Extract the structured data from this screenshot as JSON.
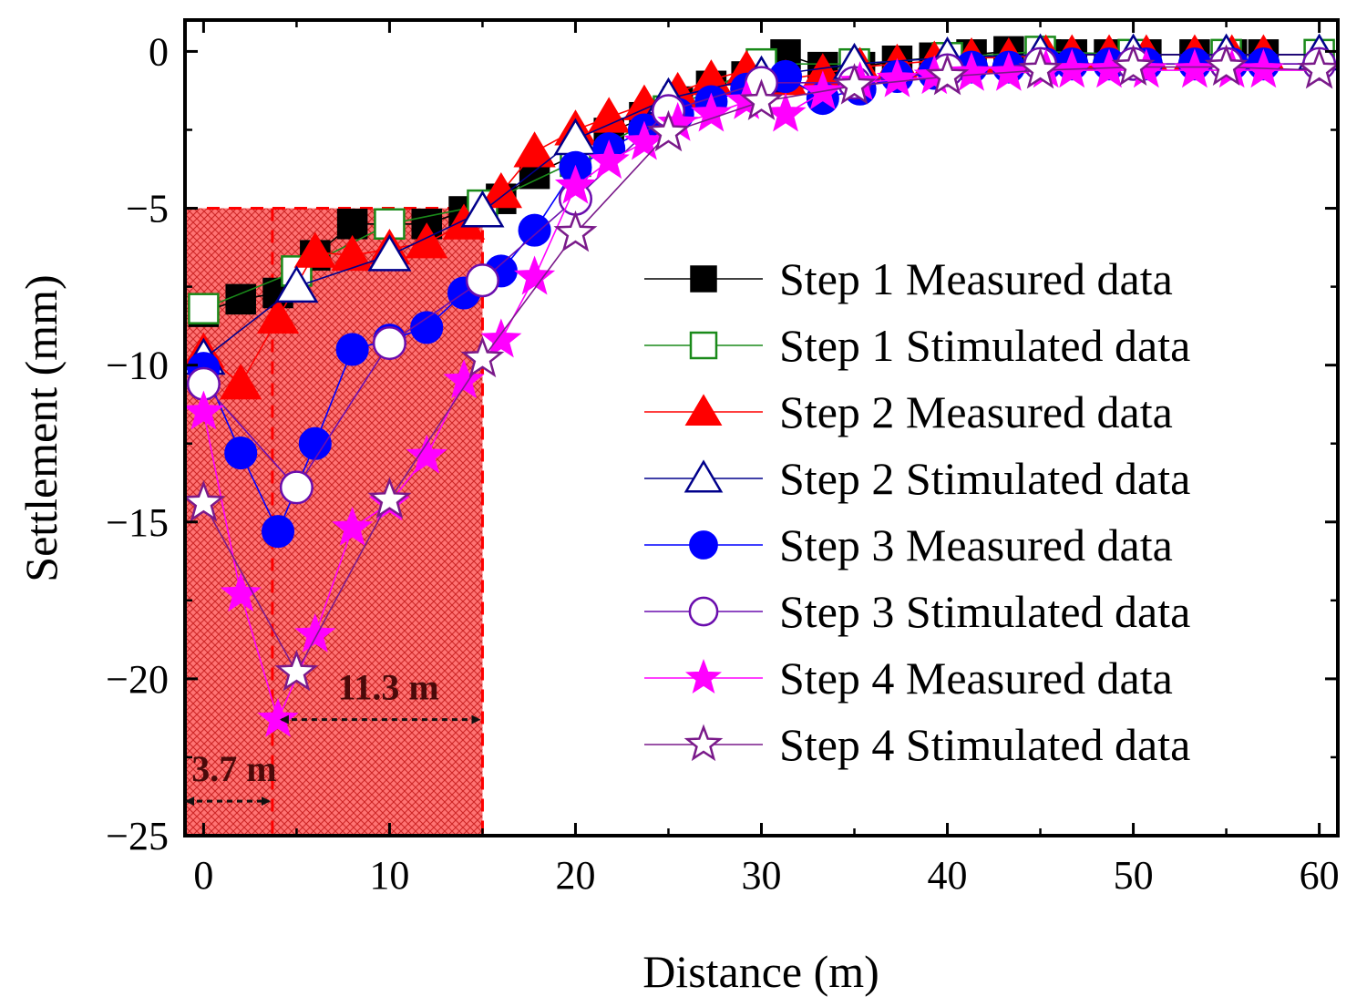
{
  "chart_data": {
    "type": "line",
    "title": "",
    "xlabel": "Distance (m)",
    "ylabel": "Settlement (mm)",
    "xlim": [
      -1,
      61
    ],
    "ylim": [
      -25,
      1
    ],
    "xticks": [
      0,
      10,
      20,
      30,
      40,
      50,
      60
    ],
    "yticks": [
      0,
      -5,
      -10,
      -15,
      -20,
      -25
    ],
    "ytick_labels": [
      "0",
      "−5",
      "−10",
      "−15",
      "−20",
      "−25"
    ],
    "grid": false,
    "legend_position": "right",
    "shaded_region": {
      "x_from": -1,
      "x_to": 15,
      "y_top": -5,
      "color": "#ff2a2a",
      "pattern": "crosshatch"
    },
    "vertical_marker_x": 3.7,
    "annotations": [
      {
        "text": "11.3 m",
        "arrow_from_x": 3.7,
        "arrow_to_x": 15,
        "y": -21.3
      },
      {
        "text": "3.7 m",
        "arrow_from_x": -1,
        "arrow_to_x": 3.7,
        "y": -23.9
      }
    ],
    "series": [
      {
        "name": "Step 1 Measured data",
        "marker": "square",
        "filled": true,
        "color": "#000000",
        "x": [
          0,
          2,
          4,
          6,
          8,
          10,
          12,
          14,
          16,
          17.8,
          20,
          21.8,
          23.7,
          25.5,
          27.3,
          29.2,
          31.3,
          33.3,
          35.3,
          37.3,
          39.3,
          41.3,
          43.3,
          45.3,
          46.7,
          48.7,
          50.7,
          53.3,
          55.3,
          57.0,
          60
        ],
        "y": [
          -8.3,
          -7.9,
          -7.7,
          -6.5,
          -5.5,
          -5.5,
          -5.5,
          -5.1,
          -4.7,
          -3.9,
          -3.3,
          -2.6,
          -2.1,
          -1.6,
          -1.1,
          -0.8,
          -0.1,
          -0.5,
          -0.5,
          -0.3,
          -0.2,
          -0.1,
          0,
          -0.1,
          -0.1,
          -0.1,
          -0.1,
          -0.1,
          -0.1,
          -0.1,
          -0.1
        ]
      },
      {
        "name": "Step 1 Stimulated data",
        "marker": "square",
        "filled": false,
        "color": "#1a8a1a",
        "x": [
          0,
          5,
          10,
          15,
          20,
          25,
          30,
          35,
          40,
          45,
          50,
          55,
          60
        ],
        "y": [
          -8.2,
          -7.0,
          -5.5,
          -4.9,
          -3.5,
          -1.9,
          -0.4,
          -0.4,
          -0.2,
          0,
          -0.1,
          -0.1,
          -0.1
        ]
      },
      {
        "name": "Step 2 Measured data",
        "marker": "triangle",
        "filled": true,
        "color": "#ff0000",
        "x": [
          0,
          2,
          4,
          6,
          8,
          10,
          12,
          14,
          16,
          17.8,
          20,
          21.8,
          23.7,
          25.5,
          27.3,
          29.2,
          31.3,
          33.3,
          35.3,
          37.3,
          39.3,
          41.3,
          43.3,
          45.3,
          46.7,
          48.7,
          50.7,
          53.3,
          55.3,
          57.0,
          60
        ],
        "y": [
          -9.6,
          -10.6,
          -8.5,
          -6.4,
          -6.5,
          -6.3,
          -6.1,
          -5.5,
          -4.5,
          -3.2,
          -2.5,
          -2.1,
          -1.7,
          -1.3,
          -0.9,
          -0.6,
          -0.9,
          -0.7,
          -0.5,
          -0.4,
          -0.3,
          -0.2,
          -0.2,
          -0.1,
          -0.1,
          -0.1,
          -0.1,
          -0.1,
          -0.1,
          -0.1,
          -0.1
        ]
      },
      {
        "name": "Step 2 Stimulated data",
        "marker": "triangle",
        "filled": false,
        "color": "#00008b",
        "x": [
          0,
          5,
          10,
          15,
          20,
          25,
          30,
          35,
          40,
          45,
          50,
          55,
          60
        ],
        "y": [
          -9.8,
          -7.5,
          -6.5,
          -5.1,
          -2.8,
          -1.5,
          -0.8,
          -0.4,
          -0.2,
          -0.1,
          -0.1,
          -0.1,
          -0.1
        ]
      },
      {
        "name": "Step 3 Measured data",
        "marker": "circle",
        "filled": true,
        "color": "#0000ff",
        "x": [
          0,
          2,
          4,
          6,
          8,
          10,
          12,
          14,
          16,
          17.8,
          20,
          21.8,
          23.7,
          25.5,
          27.3,
          29.2,
          31.3,
          33.3,
          35.3,
          37.3,
          39.3,
          41.3,
          43.3,
          45.3,
          46.7,
          48.7,
          50.7,
          53.3,
          55.3,
          57.0,
          60
        ],
        "y": [
          -10.1,
          -12.8,
          -15.3,
          -12.5,
          -9.5,
          -9.2,
          -8.8,
          -7.7,
          -7.0,
          -5.7,
          -3.7,
          -3.1,
          -2.5,
          -2.0,
          -1.6,
          -1.2,
          -0.8,
          -1.5,
          -1.2,
          -0.8,
          -0.7,
          -0.5,
          -0.5,
          -0.4,
          -0.4,
          -0.4,
          -0.4,
          -0.4,
          -0.4,
          -0.4,
          -0.4
        ]
      },
      {
        "name": "Step 3 Stimulated data",
        "marker": "circle",
        "filled": false,
        "color": "#6a0dad",
        "x": [
          0,
          5,
          10,
          15,
          20,
          25,
          30,
          35,
          40,
          45,
          50,
          55,
          60
        ],
        "y": [
          -10.6,
          -13.9,
          -9.3,
          -7.3,
          -4.7,
          -1.9,
          -1.0,
          -1.0,
          -0.6,
          -0.4,
          -0.4,
          -0.4,
          -0.4
        ]
      },
      {
        "name": "Step 4 Measured data",
        "marker": "star",
        "filled": true,
        "color": "#ff00ff",
        "x": [
          0,
          2,
          4,
          6,
          8,
          10,
          12,
          14,
          16,
          17.8,
          20,
          21.8,
          23.7,
          25.5,
          27.3,
          29.2,
          31.3,
          33.3,
          35.3,
          37.3,
          39.3,
          41.3,
          43.3,
          45.3,
          46.7,
          48.7,
          50.7,
          53.3,
          55.3,
          57.0,
          60
        ],
        "y": [
          -11.5,
          -17.3,
          -21.3,
          -18.6,
          -15.2,
          -14.4,
          -12.9,
          -10.5,
          -9.2,
          -7.2,
          -4.3,
          -3.5,
          -2.9,
          -2.3,
          -2.0,
          -1.6,
          -2.0,
          -1.3,
          -1.0,
          -0.9,
          -0.8,
          -0.7,
          -0.7,
          -0.6,
          -0.6,
          -0.6,
          -0.6,
          -0.6,
          -0.6,
          -0.6,
          -0.6
        ]
      },
      {
        "name": "Step 4 Stimulated data",
        "marker": "star",
        "filled": false,
        "color": "#7a1a8a",
        "x": [
          0,
          5,
          10,
          15,
          20,
          25,
          30,
          35,
          40,
          45,
          50,
          55,
          60
        ],
        "y": [
          -14.4,
          -19.8,
          -14.3,
          -9.8,
          -5.8,
          -2.6,
          -1.6,
          -1.1,
          -0.8,
          -0.6,
          -0.5,
          -0.5,
          -0.6
        ]
      }
    ]
  }
}
